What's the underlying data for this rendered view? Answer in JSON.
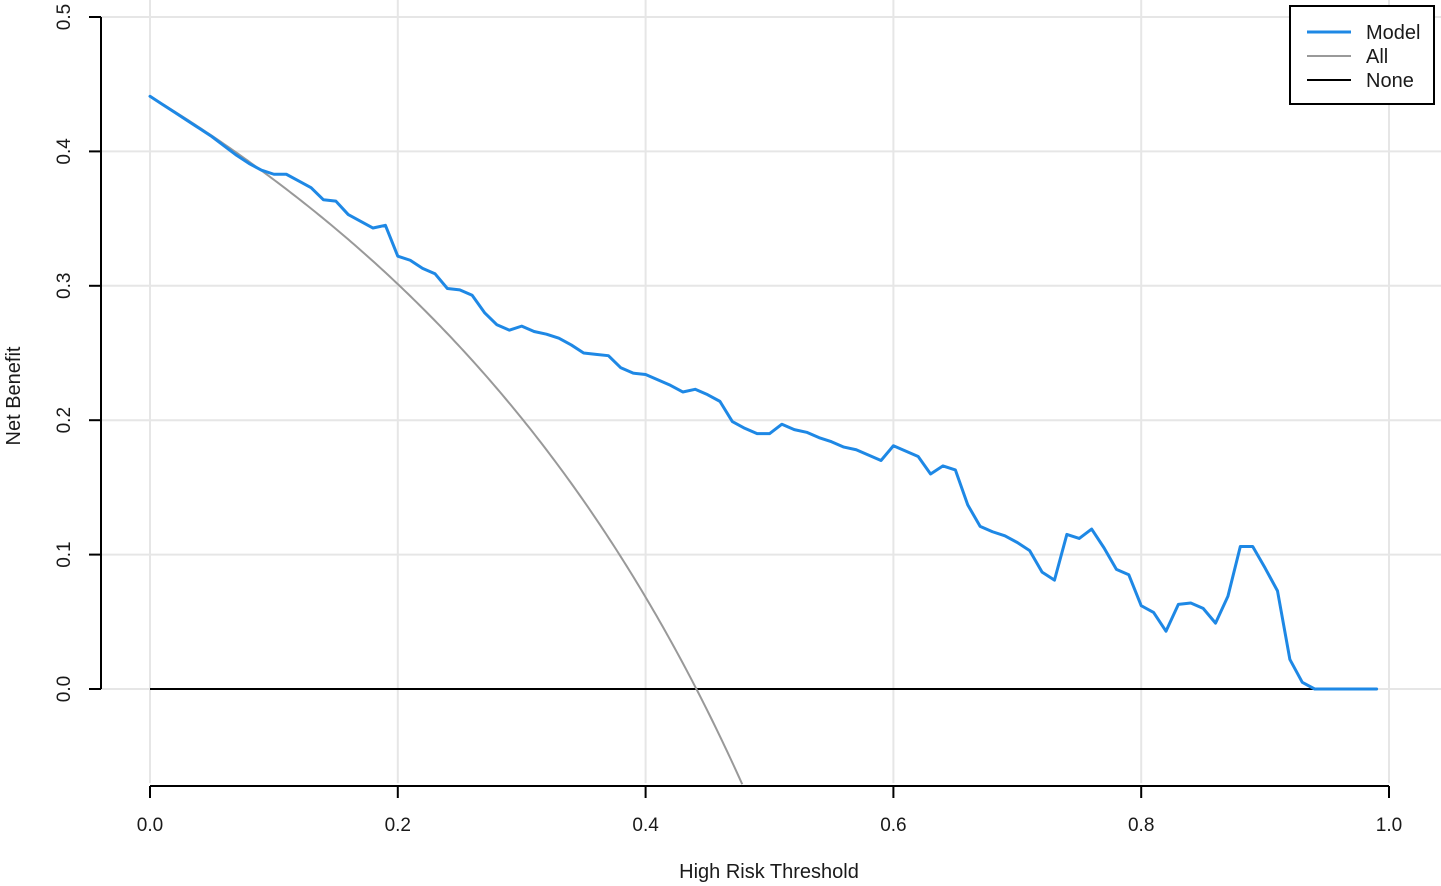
{
  "chart_data": {
    "type": "line",
    "xlabel": "High Risk Threshold",
    "ylabel": "Net Benefit",
    "xlim": [
      0.0,
      1.0
    ],
    "ylim": [
      -0.07,
      0.5
    ],
    "grid": true,
    "legend_position": "top-right",
    "x_ticks": [
      "0.0",
      "0.2",
      "0.4",
      "0.6",
      "0.8",
      "1.0"
    ],
    "y_ticks": [
      "0.0",
      "0.1",
      "0.2",
      "0.3",
      "0.4",
      "0.5"
    ],
    "series": [
      {
        "name": "Model",
        "color": "#1e88e5",
        "points": [
          [
            0.0,
            0.441
          ],
          [
            0.01,
            0.435
          ],
          [
            0.02,
            0.429
          ],
          [
            0.03,
            0.423
          ],
          [
            0.04,
            0.417
          ],
          [
            0.05,
            0.411
          ],
          [
            0.06,
            0.404
          ],
          [
            0.07,
            0.397
          ],
          [
            0.08,
            0.391
          ],
          [
            0.09,
            0.386
          ],
          [
            0.1,
            0.383
          ],
          [
            0.11,
            0.383
          ],
          [
            0.12,
            0.378
          ],
          [
            0.13,
            0.373
          ],
          [
            0.14,
            0.364
          ],
          [
            0.15,
            0.363
          ],
          [
            0.16,
            0.353
          ],
          [
            0.17,
            0.348
          ],
          [
            0.18,
            0.343
          ],
          [
            0.19,
            0.345
          ],
          [
            0.2,
            0.322
          ],
          [
            0.21,
            0.319
          ],
          [
            0.22,
            0.313
          ],
          [
            0.23,
            0.309
          ],
          [
            0.24,
            0.298
          ],
          [
            0.25,
            0.297
          ],
          [
            0.26,
            0.293
          ],
          [
            0.27,
            0.28
          ],
          [
            0.28,
            0.271
          ],
          [
            0.29,
            0.267
          ],
          [
            0.3,
            0.27
          ],
          [
            0.31,
            0.266
          ],
          [
            0.32,
            0.264
          ],
          [
            0.33,
            0.261
          ],
          [
            0.34,
            0.256
          ],
          [
            0.35,
            0.25
          ],
          [
            0.36,
            0.249
          ],
          [
            0.37,
            0.248
          ],
          [
            0.38,
            0.239
          ],
          [
            0.39,
            0.235
          ],
          [
            0.4,
            0.234
          ],
          [
            0.41,
            0.23
          ],
          [
            0.42,
            0.226
          ],
          [
            0.43,
            0.221
          ],
          [
            0.44,
            0.223
          ],
          [
            0.45,
            0.219
          ],
          [
            0.46,
            0.214
          ],
          [
            0.47,
            0.199
          ],
          [
            0.48,
            0.194
          ],
          [
            0.49,
            0.19
          ],
          [
            0.5,
            0.19
          ],
          [
            0.51,
            0.197
          ],
          [
            0.52,
            0.193
          ],
          [
            0.53,
            0.191
          ],
          [
            0.54,
            0.187
          ],
          [
            0.55,
            0.184
          ],
          [
            0.56,
            0.18
          ],
          [
            0.57,
            0.178
          ],
          [
            0.58,
            0.174
          ],
          [
            0.59,
            0.17
          ],
          [
            0.6,
            0.181
          ],
          [
            0.61,
            0.177
          ],
          [
            0.62,
            0.173
          ],
          [
            0.63,
            0.16
          ],
          [
            0.64,
            0.166
          ],
          [
            0.65,
            0.163
          ],
          [
            0.66,
            0.137
          ],
          [
            0.67,
            0.121
          ],
          [
            0.68,
            0.117
          ],
          [
            0.69,
            0.114
          ],
          [
            0.7,
            0.109
          ],
          [
            0.71,
            0.103
          ],
          [
            0.72,
            0.087
          ],
          [
            0.73,
            0.081
          ],
          [
            0.74,
            0.115
          ],
          [
            0.75,
            0.112
          ],
          [
            0.76,
            0.119
          ],
          [
            0.77,
            0.105
          ],
          [
            0.78,
            0.089
          ],
          [
            0.79,
            0.085
          ],
          [
            0.8,
            0.062
          ],
          [
            0.81,
            0.057
          ],
          [
            0.82,
            0.043
          ],
          [
            0.83,
            0.063
          ],
          [
            0.84,
            0.064
          ],
          [
            0.85,
            0.06
          ],
          [
            0.86,
            0.049
          ],
          [
            0.87,
            0.069
          ],
          [
            0.88,
            0.106
          ],
          [
            0.89,
            0.106
          ],
          [
            0.9,
            0.09
          ],
          [
            0.91,
            0.073
          ],
          [
            0.92,
            0.022
          ],
          [
            0.93,
            0.005
          ],
          [
            0.94,
            0.0
          ],
          [
            0.95,
            0.0
          ],
          [
            0.96,
            0.0
          ],
          [
            0.97,
            0.0
          ],
          [
            0.98,
            0.0
          ],
          [
            0.99,
            0.0
          ]
        ]
      },
      {
        "name": "All",
        "color": "#999999",
        "prevalence": 0.441,
        "x_range": [
          0.0,
          0.478
        ]
      },
      {
        "name": "None",
        "color": "#000000",
        "value": 0.0,
        "x_range": [
          0.0,
          0.99
        ]
      }
    ]
  }
}
